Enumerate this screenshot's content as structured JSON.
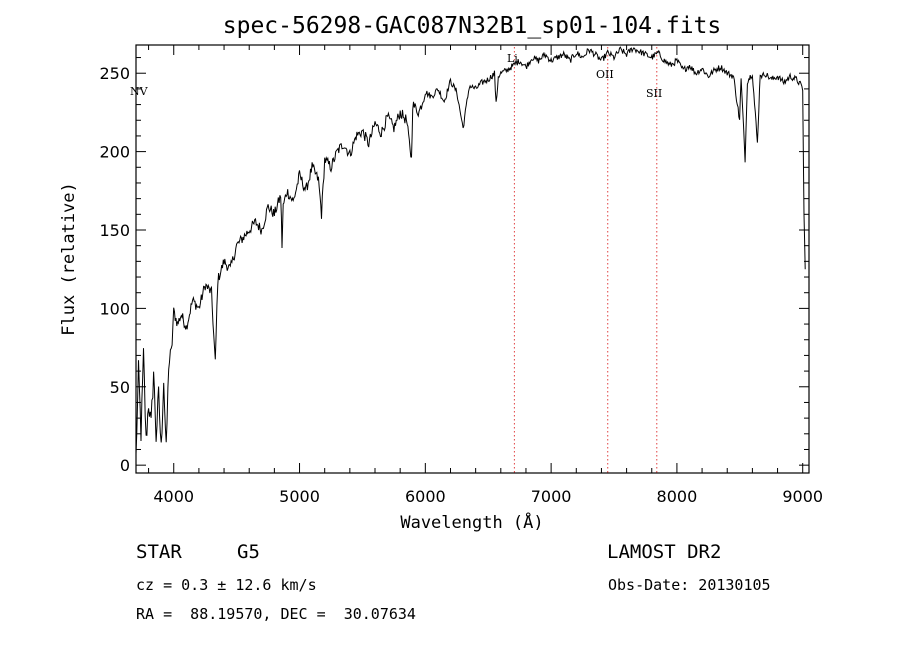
{
  "chart_data": {
    "type": "line",
    "title": "spec-56298-GAC087N32B1_sp01-104.fits",
    "xlabel": "Wavelength (Å)",
    "ylabel": "Flux (relative)",
    "xlim": [
      3700,
      9050
    ],
    "ylim": [
      -5,
      268
    ],
    "xticks": [
      4000,
      5000,
      6000,
      7000,
      8000,
      9000
    ],
    "yticks": [
      0,
      50,
      100,
      150,
      200,
      250
    ],
    "grid": false,
    "series": [
      {
        "name": "spectrum",
        "x": [
          3700,
          3720,
          3740,
          3760,
          3780,
          3800,
          3820,
          3840,
          3860,
          3880,
          3900,
          3920,
          3940,
          3960,
          3980,
          4000,
          4030,
          4060,
          4100,
          4150,
          4200,
          4250,
          4300,
          4330,
          4350,
          4400,
          4450,
          4500,
          4550,
          4600,
          4650,
          4700,
          4750,
          4800,
          4850,
          4861,
          4870,
          4900,
          4950,
          5000,
          5050,
          5100,
          5150,
          5175,
          5200,
          5250,
          5300,
          5350,
          5400,
          5450,
          5500,
          5550,
          5600,
          5650,
          5700,
          5750,
          5800,
          5850,
          5890,
          5900,
          5950,
          6000,
          6050,
          6100,
          6150,
          6200,
          6250,
          6300,
          6350,
          6400,
          6450,
          6500,
          6550,
          6563,
          6580,
          6600,
          6650,
          6700,
          6750,
          6800,
          6850,
          6900,
          6950,
          7000,
          7050,
          7100,
          7150,
          7200,
          7250,
          7300,
          7350,
          7400,
          7450,
          7500,
          7550,
          7600,
          7650,
          7700,
          7750,
          7800,
          7850,
          7900,
          7950,
          8000,
          8050,
          8100,
          8150,
          8200,
          8250,
          8300,
          8350,
          8400,
          8450,
          8498,
          8510,
          8542,
          8560,
          8600,
          8640,
          8662,
          8680,
          8700,
          8750,
          8800,
          8850,
          8900,
          8950,
          8980,
          9000,
          9010,
          9020
        ],
        "y": [
          5,
          60,
          20,
          70,
          15,
          40,
          25,
          60,
          18,
          45,
          10,
          55,
          8,
          65,
          70,
          98,
          90,
          96,
          88,
          105,
          100,
          115,
          110,
          65,
          118,
          130,
          125,
          140,
          145,
          150,
          155,
          150,
          165,
          160,
          172,
          140,
          165,
          175,
          168,
          185,
          175,
          190,
          182,
          160,
          195,
          190,
          200,
          205,
          198,
          210,
          213,
          205,
          218,
          212,
          222,
          215,
          225,
          220,
          195,
          230,
          225,
          238,
          235,
          240,
          232,
          245,
          238,
          215,
          242,
          240,
          244,
          246,
          250,
          230,
          248,
          250,
          252,
          255,
          258,
          254,
          260,
          258,
          262,
          258,
          260,
          262,
          258,
          263,
          260,
          265,
          262,
          258,
          263,
          260,
          265,
          262,
          266,
          264,
          262,
          260,
          263,
          258,
          255,
          258,
          252,
          255,
          250,
          253,
          248,
          252,
          254,
          250,
          248,
          220,
          246,
          195,
          245,
          250,
          205,
          250,
          248,
          250,
          246,
          248,
          244,
          248,
          246,
          243,
          240,
          160,
          125
        ]
      }
    ],
    "line_markers": [
      {
        "label": "NV",
        "x": 3700,
        "line": false
      },
      {
        "label": "Li",
        "x": 6708,
        "line": true
      },
      {
        "label": "OII",
        "x": 7450,
        "line": true
      },
      {
        "label": "SII",
        "x": 7840,
        "line": true
      }
    ]
  },
  "info": {
    "class_label": "STAR",
    "subclass": "G5",
    "survey": "LAMOST DR2",
    "cz": "cz = 0.3 ± 12.6 km/s",
    "obs_date": "Obs-Date: 20130105",
    "coords": "RA =  88.19570, DEC =  30.07634"
  },
  "colors": {
    "line_marker": "#e04040",
    "spectrum": "#000000",
    "axis": "#000000"
  }
}
